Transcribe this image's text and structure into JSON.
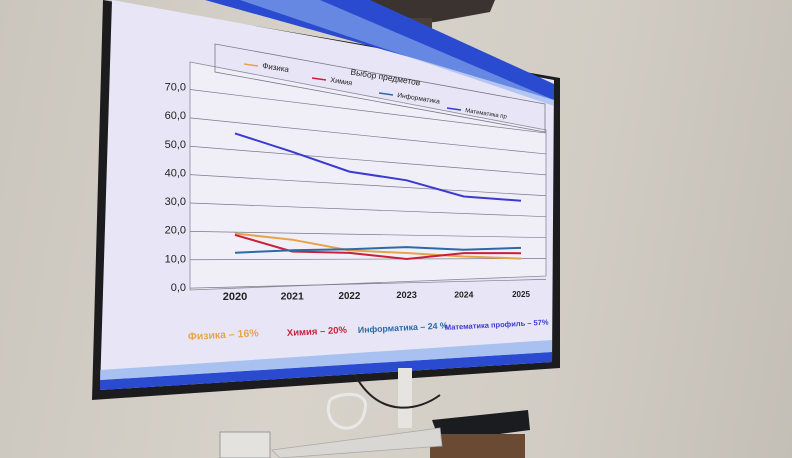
{
  "chart_data": {
    "type": "line",
    "title": "Выбор предметов",
    "x": [
      "2020",
      "2021",
      "2022",
      "2023",
      "2024",
      "2025"
    ],
    "ylim": [
      0,
      70
    ],
    "y_ticks": [
      "0,0",
      "10,0",
      "20,0",
      "30,0",
      "40,0",
      "50,0",
      "60,0",
      "70,0"
    ],
    "grid": true,
    "legend_placement": "top",
    "series": [
      {
        "name": "Физика",
        "color": "#e8a34a",
        "values": [
          19.5,
          17.5,
          13.5,
          12.5,
          11,
          10
        ]
      },
      {
        "name": "Химия",
        "color": "#cc1f3a",
        "values": [
          19,
          13,
          12.5,
          10,
          12.5,
          12.5
        ]
      },
      {
        "name": "Информатика",
        "color": "#2a6aa8",
        "values": [
          12.5,
          13.5,
          14,
          15,
          14,
          15
        ]
      },
      {
        "name": "Математика пр",
        "color": "#3a3ad0",
        "values": [
          56,
          51,
          45,
          43,
          37.5,
          37
        ]
      }
    ]
  },
  "summary_labels": [
    {
      "text": "Физика – 16%",
      "color": "#e8a34a"
    },
    {
      "text": "Химия – 20%",
      "color": "#cc1f3a"
    },
    {
      "text": "Информатика – 24 %",
      "color": "#2a6aa8"
    },
    {
      "text": "Математика профиль – 57%",
      "color": "#3a3ad0"
    }
  ]
}
